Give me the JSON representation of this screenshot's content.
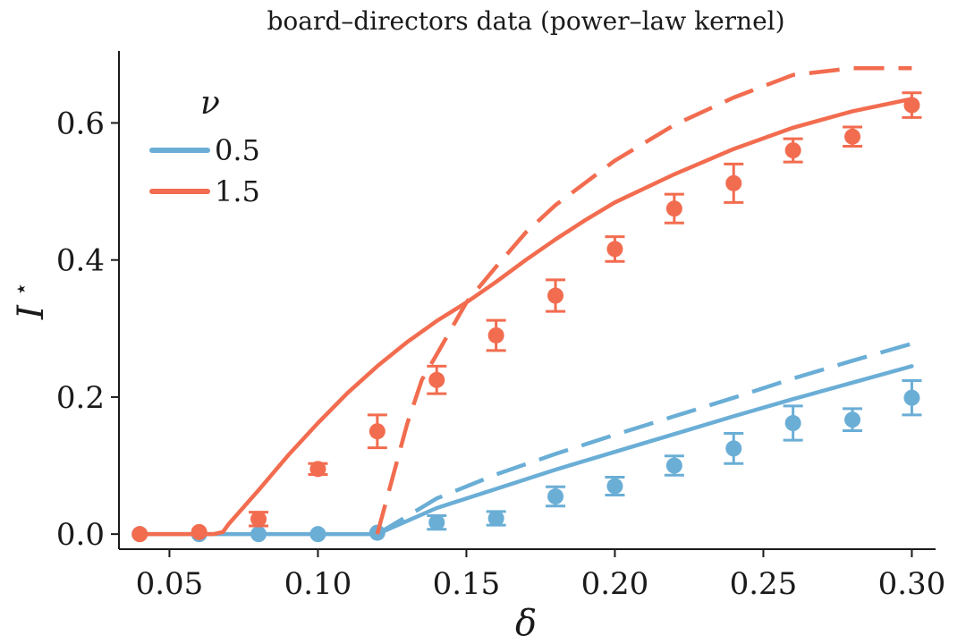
{
  "chart_data": {
    "type": "line",
    "title": "board–directors data (power–law kernel)",
    "xlabel": "δ",
    "ylabel_main": "I",
    "ylabel_sup": "⋆",
    "xlim": [
      0.033,
      0.308
    ],
    "ylim": [
      -0.022,
      0.705
    ],
    "xticks": [
      0.05,
      0.1,
      0.15,
      0.2,
      0.25,
      0.3
    ],
    "xtick_labels": [
      "0.05",
      "0.10",
      "0.15",
      "0.20",
      "0.25",
      "0.30"
    ],
    "yticks": [
      0.0,
      0.2,
      0.4,
      0.6
    ],
    "ytick_labels": [
      "0.0",
      "0.2",
      "0.4",
      "0.6"
    ],
    "grid": false,
    "legend": {
      "title": "ν",
      "placement": "top-left"
    },
    "series": [
      {
        "name": "0.5",
        "color": "#6aaed6",
        "solid_line": {
          "x": [
            0.04,
            0.06,
            0.08,
            0.1,
            0.12,
            0.14,
            0.16,
            0.18,
            0.2,
            0.22,
            0.24,
            0.26,
            0.28,
            0.3
          ],
          "y": [
            0.0,
            0.0,
            0.0,
            0.0,
            0.0,
            0.038,
            0.066,
            0.094,
            0.12,
            0.146,
            0.172,
            0.197,
            0.221,
            0.245
          ]
        },
        "dashed_line": {
          "x": [
            0.12,
            0.14,
            0.16,
            0.18,
            0.2,
            0.22,
            0.24,
            0.26,
            0.28,
            0.3
          ],
          "y": [
            0.0,
            0.052,
            0.087,
            0.117,
            0.145,
            0.172,
            0.199,
            0.227,
            0.253,
            0.278
          ]
        },
        "points": {
          "x": [
            0.04,
            0.06,
            0.08,
            0.1,
            0.12,
            0.14,
            0.16,
            0.18,
            0.2,
            0.22,
            0.24,
            0.26,
            0.28,
            0.3
          ],
          "y": [
            0.0,
            0.0,
            0.0,
            0.0,
            0.002,
            0.017,
            0.023,
            0.055,
            0.07,
            0.1,
            0.125,
            0.162,
            0.167,
            0.199
          ],
          "err": [
            0.0,
            0.0,
            0.0,
            0.0,
            0.0,
            0.01,
            0.01,
            0.014,
            0.013,
            0.014,
            0.022,
            0.025,
            0.016,
            0.025
          ]
        }
      },
      {
        "name": "1.5",
        "color": "#f26c4f",
        "solid_line": {
          "x": [
            0.04,
            0.06,
            0.065,
            0.068,
            0.07,
            0.08,
            0.09,
            0.1,
            0.11,
            0.12,
            0.13,
            0.14,
            0.15,
            0.16,
            0.17,
            0.18,
            0.19,
            0.2,
            0.22,
            0.24,
            0.26,
            0.28,
            0.3
          ],
          "y": [
            0.0,
            0.0,
            0.0,
            0.003,
            0.015,
            0.064,
            0.115,
            0.162,
            0.206,
            0.245,
            0.28,
            0.311,
            0.338,
            0.368,
            0.4,
            0.43,
            0.458,
            0.484,
            0.525,
            0.562,
            0.593,
            0.617,
            0.635
          ]
        },
        "dashed_line": {
          "x": [
            0.12,
            0.125,
            0.13,
            0.135,
            0.14,
            0.145,
            0.15,
            0.16,
            0.17,
            0.18,
            0.2,
            0.22,
            0.24,
            0.26,
            0.28,
            0.3
          ],
          "y": [
            0.0,
            0.08,
            0.16,
            0.225,
            0.262,
            0.3,
            0.338,
            0.39,
            0.44,
            0.48,
            0.545,
            0.597,
            0.637,
            0.67,
            0.68,
            0.68
          ]
        },
        "points": {
          "x": [
            0.04,
            0.06,
            0.08,
            0.1,
            0.12,
            0.14,
            0.16,
            0.18,
            0.2,
            0.22,
            0.24,
            0.26,
            0.28,
            0.3
          ],
          "y": [
            0.0,
            0.003,
            0.022,
            0.095,
            0.15,
            0.225,
            0.29,
            0.348,
            0.416,
            0.475,
            0.512,
            0.56,
            0.58,
            0.626
          ],
          "err": [
            0.0,
            0.0,
            0.01,
            0.008,
            0.024,
            0.02,
            0.022,
            0.023,
            0.018,
            0.021,
            0.028,
            0.017,
            0.014,
            0.018
          ]
        }
      }
    ]
  }
}
